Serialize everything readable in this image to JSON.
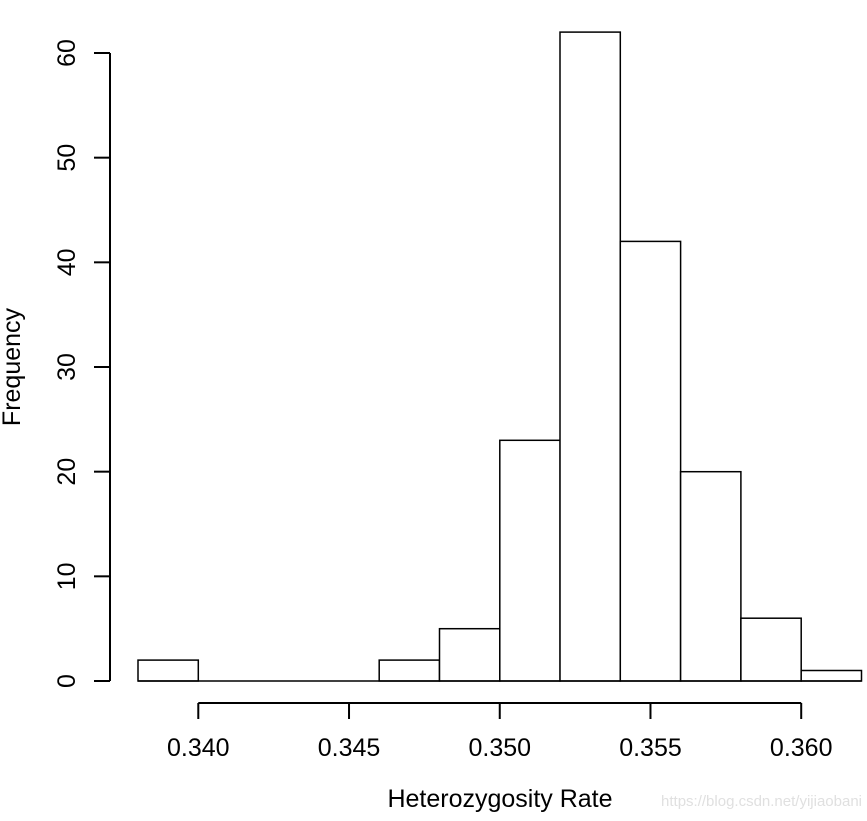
{
  "chart_data": {
    "type": "bar",
    "subtype": "histogram",
    "title": "",
    "xlabel": "Heterozygosity Rate",
    "ylabel": "Frequency",
    "bins": {
      "start": 0.338,
      "width": 0.002
    },
    "bin_edges": [
      0.338,
      0.34,
      0.342,
      0.344,
      0.346,
      0.348,
      0.35,
      0.352,
      0.354,
      0.356,
      0.358,
      0.36,
      0.362
    ],
    "counts": [
      2,
      0,
      0,
      0,
      2,
      5,
      23,
      62,
      42,
      20,
      6,
      1
    ],
    "x_tick_values": [
      0.34,
      0.345,
      0.35,
      0.355,
      0.36
    ],
    "x_tick_labels": [
      "0.340",
      "0.345",
      "0.350",
      "0.355",
      "0.360"
    ],
    "y_tick_values": [
      0,
      10,
      20,
      30,
      40,
      50,
      60
    ],
    "y_tick_labels": [
      "0",
      "10",
      "20",
      "30",
      "40",
      "50",
      "60"
    ],
    "xlim": [
      0.338,
      0.362
    ],
    "ylim": [
      0,
      62
    ],
    "grid": false,
    "legend_position": "none",
    "bar_fill": "#ffffff",
    "bar_stroke": "#000000",
    "axis_color": "#000000",
    "background": "#ffffff"
  },
  "watermark": {
    "text": "https://blog.csdn.net/yijiaobani",
    "color": "#e0e0e0"
  }
}
